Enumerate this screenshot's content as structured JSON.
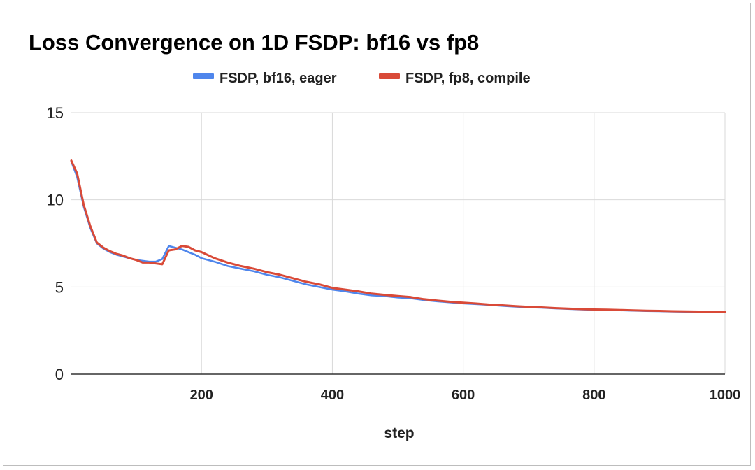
{
  "chart_data": {
    "type": "line",
    "title": "Loss Convergence on 1D FSDP: bf16 vs fp8",
    "xlabel": "step",
    "ylabel": "",
    "xlim": [
      1,
      1000
    ],
    "ylim": [
      0,
      15
    ],
    "xticks": [
      200,
      400,
      600,
      800,
      1000
    ],
    "yticks": [
      0,
      5,
      10,
      15
    ],
    "grid": true,
    "legend_position": "top",
    "series": [
      {
        "name": "FSDP, bf16, eager",
        "color": "#4f86ec",
        "points": [
          [
            1,
            12.2
          ],
          [
            10,
            11.3
          ],
          [
            20,
            9.6
          ],
          [
            30,
            8.4
          ],
          [
            40,
            7.5
          ],
          [
            50,
            7.2
          ],
          [
            60,
            7.0
          ],
          [
            70,
            6.85
          ],
          [
            80,
            6.75
          ],
          [
            90,
            6.65
          ],
          [
            100,
            6.55
          ],
          [
            110,
            6.5
          ],
          [
            120,
            6.45
          ],
          [
            130,
            6.45
          ],
          [
            140,
            6.6
          ],
          [
            150,
            7.35
          ],
          [
            160,
            7.25
          ],
          [
            170,
            7.15
          ],
          [
            180,
            7.0
          ],
          [
            190,
            6.85
          ],
          [
            200,
            6.65
          ],
          [
            220,
            6.45
          ],
          [
            240,
            6.2
          ],
          [
            260,
            6.05
          ],
          [
            280,
            5.9
          ],
          [
            300,
            5.7
          ],
          [
            320,
            5.55
          ],
          [
            340,
            5.35
          ],
          [
            360,
            5.15
          ],
          [
            380,
            5.0
          ],
          [
            400,
            4.85
          ],
          [
            420,
            4.75
          ],
          [
            440,
            4.62
          ],
          [
            460,
            4.52
          ],
          [
            480,
            4.48
          ],
          [
            500,
            4.4
          ],
          [
            520,
            4.35
          ],
          [
            540,
            4.25
          ],
          [
            560,
            4.18
          ],
          [
            580,
            4.12
          ],
          [
            600,
            4.06
          ],
          [
            620,
            4.02
          ],
          [
            640,
            3.97
          ],
          [
            660,
            3.92
          ],
          [
            680,
            3.87
          ],
          [
            700,
            3.84
          ],
          [
            720,
            3.81
          ],
          [
            740,
            3.77
          ],
          [
            760,
            3.74
          ],
          [
            780,
            3.71
          ],
          [
            800,
            3.69
          ],
          [
            820,
            3.68
          ],
          [
            840,
            3.66
          ],
          [
            860,
            3.64
          ],
          [
            880,
            3.62
          ],
          [
            900,
            3.61
          ],
          [
            920,
            3.59
          ],
          [
            940,
            3.58
          ],
          [
            960,
            3.57
          ],
          [
            980,
            3.55
          ],
          [
            990,
            3.54
          ],
          [
            1000,
            3.55
          ]
        ]
      },
      {
        "name": "FSDP, fp8, compile",
        "color": "#d94a38",
        "points": [
          [
            1,
            12.25
          ],
          [
            10,
            11.5
          ],
          [
            20,
            9.7
          ],
          [
            30,
            8.5
          ],
          [
            40,
            7.55
          ],
          [
            50,
            7.25
          ],
          [
            60,
            7.05
          ],
          [
            70,
            6.9
          ],
          [
            80,
            6.8
          ],
          [
            90,
            6.65
          ],
          [
            100,
            6.55
          ],
          [
            110,
            6.4
          ],
          [
            120,
            6.4
          ],
          [
            130,
            6.35
          ],
          [
            140,
            6.3
          ],
          [
            150,
            7.1
          ],
          [
            160,
            7.15
          ],
          [
            170,
            7.35
          ],
          [
            180,
            7.3
          ],
          [
            190,
            7.1
          ],
          [
            200,
            7.0
          ],
          [
            220,
            6.65
          ],
          [
            240,
            6.4
          ],
          [
            260,
            6.2
          ],
          [
            280,
            6.05
          ],
          [
            300,
            5.85
          ],
          [
            320,
            5.7
          ],
          [
            340,
            5.5
          ],
          [
            360,
            5.3
          ],
          [
            380,
            5.15
          ],
          [
            400,
            4.95
          ],
          [
            420,
            4.85
          ],
          [
            440,
            4.75
          ],
          [
            460,
            4.62
          ],
          [
            480,
            4.55
          ],
          [
            500,
            4.48
          ],
          [
            520,
            4.42
          ],
          [
            540,
            4.3
          ],
          [
            560,
            4.22
          ],
          [
            580,
            4.15
          ],
          [
            600,
            4.1
          ],
          [
            620,
            4.05
          ],
          [
            640,
            3.99
          ],
          [
            660,
            3.95
          ],
          [
            680,
            3.9
          ],
          [
            700,
            3.86
          ],
          [
            720,
            3.83
          ],
          [
            740,
            3.79
          ],
          [
            760,
            3.76
          ],
          [
            780,
            3.73
          ],
          [
            800,
            3.71
          ],
          [
            820,
            3.7
          ],
          [
            840,
            3.68
          ],
          [
            860,
            3.66
          ],
          [
            880,
            3.64
          ],
          [
            900,
            3.63
          ],
          [
            920,
            3.61
          ],
          [
            940,
            3.6
          ],
          [
            960,
            3.59
          ],
          [
            980,
            3.57
          ],
          [
            990,
            3.56
          ],
          [
            1000,
            3.56
          ]
        ]
      }
    ]
  }
}
